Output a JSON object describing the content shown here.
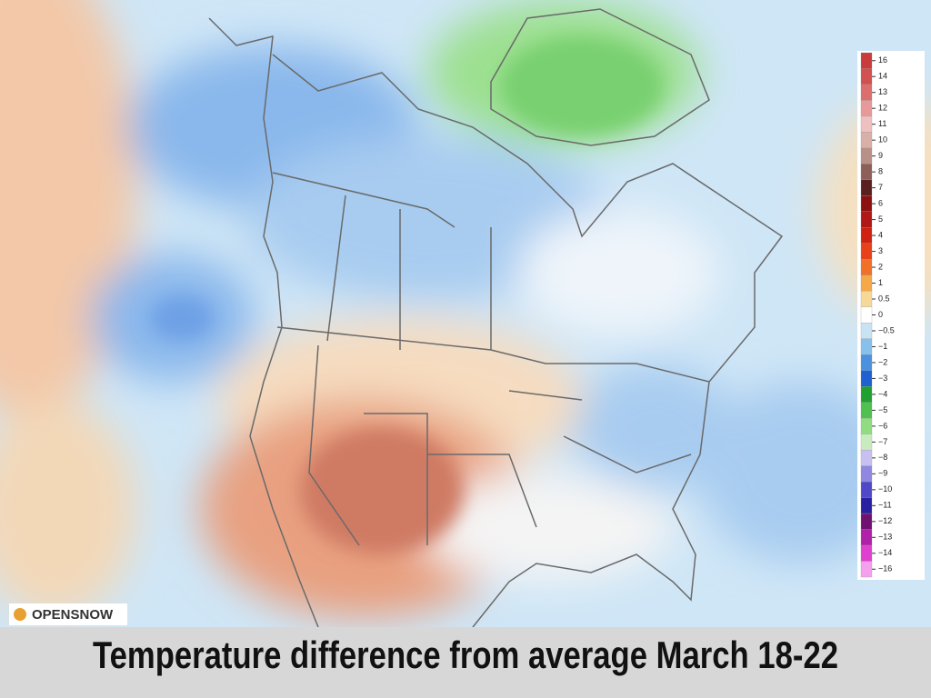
{
  "logo": "OPENSNOW",
  "caption": "Temperature difference from average March 18-22",
  "legend": [
    {
      "label": "16",
      "color": "#c83c3c"
    },
    {
      "label": "14",
      "color": "#d25050"
    },
    {
      "label": "13",
      "color": "#dc6e6e"
    },
    {
      "label": "12",
      "color": "#e89a9a"
    },
    {
      "label": "11",
      "color": "#efc0c0"
    },
    {
      "label": "10",
      "color": "#d8b0a8"
    },
    {
      "label": "9",
      "color": "#b89088"
    },
    {
      "label": "8",
      "color": "#8c6058"
    },
    {
      "label": "7",
      "color": "#5a2020"
    },
    {
      "label": "6",
      "color": "#8c1010"
    },
    {
      "label": "5",
      "color": "#b01818"
    },
    {
      "label": "4",
      "color": "#d02010"
    },
    {
      "label": "3",
      "color": "#e84018"
    },
    {
      "label": "2",
      "color": "#f07028"
    },
    {
      "label": "1",
      "color": "#f4a848"
    },
    {
      "label": "0.5",
      "color": "#f8d898"
    },
    {
      "label": "0",
      "color": "#ffffff"
    },
    {
      "label": "−0.5",
      "color": "#c8e4f4"
    },
    {
      "label": "−1",
      "color": "#88c0ec"
    },
    {
      "label": "−2",
      "color": "#4c90e0"
    },
    {
      "label": "−3",
      "color": "#2060d0"
    },
    {
      "label": "−4",
      "color": "#20a030"
    },
    {
      "label": "−5",
      "color": "#50c050"
    },
    {
      "label": "−6",
      "color": "#90dc80"
    },
    {
      "label": "−7",
      "color": "#c8ecc0"
    },
    {
      "label": "−8",
      "color": "#c8c0f0"
    },
    {
      "label": "−9",
      "color": "#9088e0"
    },
    {
      "label": "−10",
      "color": "#5048c8"
    },
    {
      "label": "−11",
      "color": "#2820a0"
    },
    {
      "label": "−12",
      "color": "#701070"
    },
    {
      "label": "−13",
      "color": "#b020a8"
    },
    {
      "label": "−14",
      "color": "#e040d0"
    },
    {
      "label": "−16",
      "color": "#f4a0ec"
    }
  ]
}
